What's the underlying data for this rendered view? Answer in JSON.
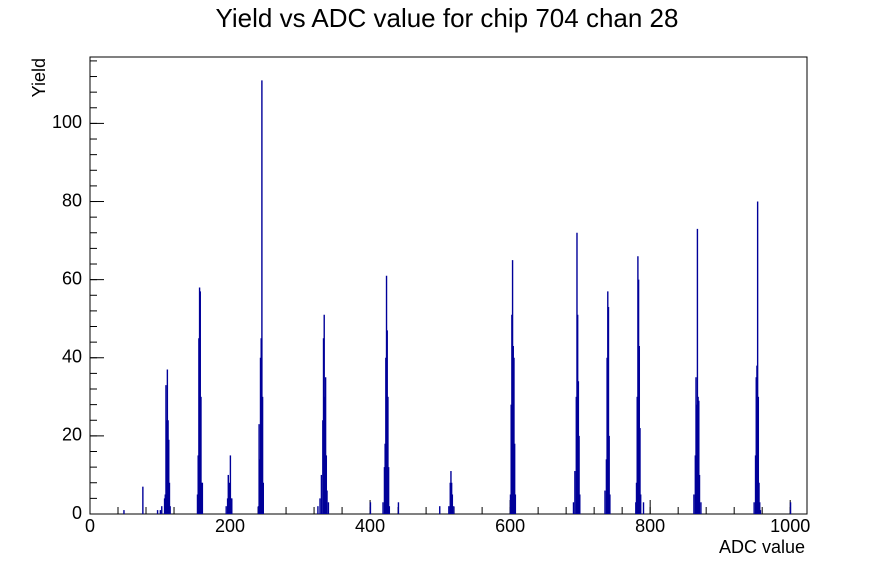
{
  "chart_data": {
    "type": "histogram",
    "title": "Yield vs ADC value for chip 704 chan 28",
    "x_label": "ADC value",
    "y_label": "Yield",
    "color": "#000099",
    "x": [
      48,
      75,
      96,
      100,
      102,
      106,
      107,
      108,
      109,
      110,
      111,
      112,
      113,
      114,
      153,
      154,
      155,
      156,
      157,
      158,
      159,
      160,
      194,
      196,
      197,
      198,
      199,
      200,
      201,
      202,
      240,
      241,
      242,
      243,
      244,
      245,
      246,
      247,
      325,
      328,
      330,
      332,
      333,
      334,
      335,
      336,
      337,
      338,
      340,
      400,
      418,
      420,
      421,
      422,
      423,
      424,
      425,
      426,
      427,
      440,
      499,
      512,
      514,
      515,
      516,
      517,
      519,
      600,
      601,
      602,
      603,
      604,
      605,
      606,
      607,
      690,
      692,
      694,
      695,
      696,
      697,
      698,
      699,
      735,
      737,
      738,
      739,
      740,
      741,
      742,
      779,
      780,
      781,
      782,
      783,
      784,
      785,
      786,
      790,
      862,
      864,
      865,
      866,
      867,
      868,
      869,
      870,
      872,
      948,
      950,
      951,
      952,
      953,
      954,
      955,
      956,
      957,
      1000
    ],
    "values": [
      1,
      7,
      1,
      1,
      2,
      4,
      5,
      33,
      24,
      37,
      24,
      19,
      8,
      2,
      5,
      15,
      45,
      58,
      57,
      30,
      8,
      8,
      2,
      4,
      10,
      6,
      8,
      15,
      4,
      4,
      2,
      23,
      14,
      40,
      45,
      111,
      30,
      8,
      2,
      4,
      10,
      24,
      45,
      51,
      30,
      35,
      15,
      6,
      3,
      3,
      3,
      12,
      18,
      40,
      61,
      47,
      30,
      12,
      2,
      3,
      2,
      2,
      8,
      11,
      8,
      5,
      2,
      5,
      28,
      51,
      65,
      43,
      40,
      18,
      5,
      3,
      11,
      30,
      72,
      51,
      34,
      20,
      5,
      6,
      14,
      40,
      57,
      53,
      20,
      5,
      3,
      8,
      30,
      66,
      60,
      43,
      22,
      5,
      3,
      5,
      15,
      35,
      28,
      73,
      30,
      29,
      10,
      3,
      3,
      15,
      35,
      38,
      80,
      30,
      8,
      3,
      1,
      3
    ],
    "xlim": [
      0,
      1024
    ],
    "xticks": [
      0,
      200,
      400,
      600,
      800,
      1000
    ],
    "ylim": [
      0,
      117
    ],
    "yticks": [
      0,
      20,
      40,
      60,
      80,
      100
    ]
  }
}
